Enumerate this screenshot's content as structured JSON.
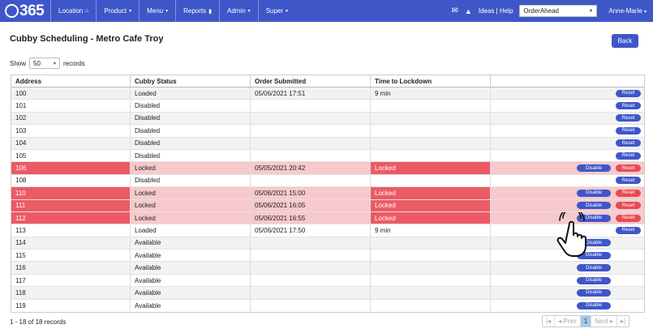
{
  "nav": {
    "logo": "365",
    "items": [
      {
        "label": "Location",
        "icon": "home-icon",
        "glyph": "⌂",
        "caret": ""
      },
      {
        "label": "Product",
        "icon": "",
        "glyph": "",
        "caret": "▾"
      },
      {
        "label": "Menu",
        "icon": "",
        "glyph": "",
        "caret": "▾"
      },
      {
        "label": "Reports",
        "icon": "bar-chart-icon",
        "glyph": "▮",
        "caret": ""
      },
      {
        "label": "Admin",
        "icon": "",
        "glyph": "",
        "caret": "▾"
      },
      {
        "label": "Super",
        "icon": "",
        "glyph": "",
        "caret": "▾"
      }
    ],
    "mail_icon": "✉",
    "bell_icon": "🔔",
    "help": "Ideas | Help",
    "store_select": "OrderAhead",
    "user": "Anne-Marie"
  },
  "page": {
    "title": "Cubby Scheduling - Metro Cafe Troy",
    "back": "Back",
    "show_label": "Show",
    "show_value": "50",
    "records_label": "records"
  },
  "table": {
    "headers": [
      "Address",
      "Cubby Status",
      "Order Submitted",
      "Time to Lockdown",
      ""
    ],
    "rows": [
      {
        "address": "100",
        "status": "Loaded",
        "order": "05/06/2021 17:51",
        "time": "9 min",
        "locked": false,
        "disable": false,
        "reset_red": false
      },
      {
        "address": "101",
        "status": "Disabled",
        "order": "",
        "time": "",
        "locked": false,
        "disable": false,
        "reset_red": false
      },
      {
        "address": "102",
        "status": "Disabled",
        "order": "",
        "time": "",
        "locked": false,
        "disable": false,
        "reset_red": false
      },
      {
        "address": "103",
        "status": "Disabled",
        "order": "",
        "time": "",
        "locked": false,
        "disable": false,
        "reset_red": false
      },
      {
        "address": "104",
        "status": "Disabled",
        "order": "",
        "time": "",
        "locked": false,
        "disable": false,
        "reset_red": false
      },
      {
        "address": "105",
        "status": "Disabled",
        "order": "",
        "time": "",
        "locked": false,
        "disable": false,
        "reset_red": false
      },
      {
        "address": "106",
        "status": "Locked",
        "order": "05/05/2021 20:42",
        "time": "Locked",
        "locked": true,
        "disable": true,
        "reset_red": true
      },
      {
        "address": "108",
        "status": "Disabled",
        "order": "",
        "time": "",
        "locked": false,
        "disable": false,
        "reset_red": false
      },
      {
        "address": "110",
        "status": "Locked",
        "order": "05/06/2021 15:00",
        "time": "Locked",
        "locked": true,
        "disable": true,
        "reset_red": true
      },
      {
        "address": "111",
        "status": "Locked",
        "order": "05/06/2021 16:05",
        "time": "Locked",
        "locked": true,
        "disable": true,
        "reset_red": true
      },
      {
        "address": "112",
        "status": "Locked",
        "order": "05/06/2021 16:55",
        "time": "Locked",
        "locked": true,
        "disable": true,
        "reset_red": true
      },
      {
        "address": "113",
        "status": "Loaded",
        "order": "05/06/2021 17:50",
        "time": "9 min",
        "locked": false,
        "disable": false,
        "reset_red": false
      },
      {
        "address": "114",
        "status": "Available",
        "order": "",
        "time": "",
        "locked": false,
        "disable": true,
        "reset_red": false,
        "no_reset": true
      },
      {
        "address": "115",
        "status": "Available",
        "order": "",
        "time": "",
        "locked": false,
        "disable": true,
        "reset_red": false,
        "no_reset": true
      },
      {
        "address": "116",
        "status": "Available",
        "order": "",
        "time": "",
        "locked": false,
        "disable": true,
        "reset_red": false,
        "no_reset": true
      },
      {
        "address": "117",
        "status": "Available",
        "order": "",
        "time": "",
        "locked": false,
        "disable": true,
        "reset_red": false,
        "no_reset": true
      },
      {
        "address": "118",
        "status": "Available",
        "order": "",
        "time": "",
        "locked": false,
        "disable": true,
        "reset_red": false,
        "no_reset": true
      },
      {
        "address": "119",
        "status": "Available",
        "order": "",
        "time": "",
        "locked": false,
        "disable": true,
        "reset_red": false,
        "no_reset": true
      }
    ],
    "disable_label": "Disable",
    "reset_label": "Reset"
  },
  "footer": {
    "info": "1 - 18 of 18 records",
    "pager": [
      "|◂",
      "◂ Prev",
      "1",
      "Next ▸",
      "▸|"
    ],
    "active_page": "1"
  },
  "colors": {
    "brand": "#3f56c9",
    "locked_dark": "#ec5a64",
    "locked_light": "#f7c9cc",
    "reset_red": "#e84a55"
  }
}
